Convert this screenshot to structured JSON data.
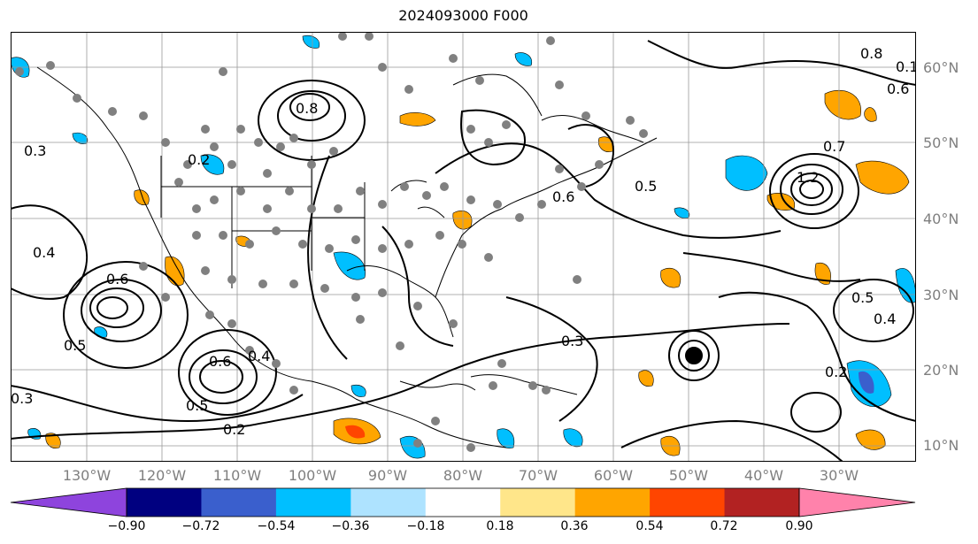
{
  "title": "2024093000 F000",
  "lat_labels": [
    "60°N",
    "50°N",
    "40°N",
    "30°N",
    "20°N",
    "10°N"
  ],
  "lon_labels": [
    "130°W",
    "120°W",
    "110°W",
    "100°W",
    "90°W",
    "80°W",
    "70°W",
    "60°W",
    "50°W",
    "40°W",
    "30°W"
  ],
  "colorbar": {
    "ticks": [
      "−0.90",
      "−0.72",
      "−0.54",
      "−0.36",
      "−0.18",
      "0.18",
      "0.36",
      "0.54",
      "0.72",
      "0.90"
    ],
    "colors": [
      "#8e44dd",
      "#000080",
      "#3a5fcd",
      "#00bfff",
      "#aee3ff",
      "#ffffff",
      "#ffe68a",
      "#ffa500",
      "#ff4500",
      "#b22222",
      "#ff82ab"
    ]
  },
  "contour_labels": [
    "0.3",
    "0.4",
    "0.5",
    "0.6",
    "0.8",
    "1.2",
    "0.2",
    "0.5",
    "0.6",
    "0.4",
    "0.3",
    "0.2",
    "0.6",
    "0.5",
    "0.5",
    "0.4",
    "0.3",
    "0.2",
    "0.1",
    "0.6",
    "0.8",
    "0.7"
  ]
}
